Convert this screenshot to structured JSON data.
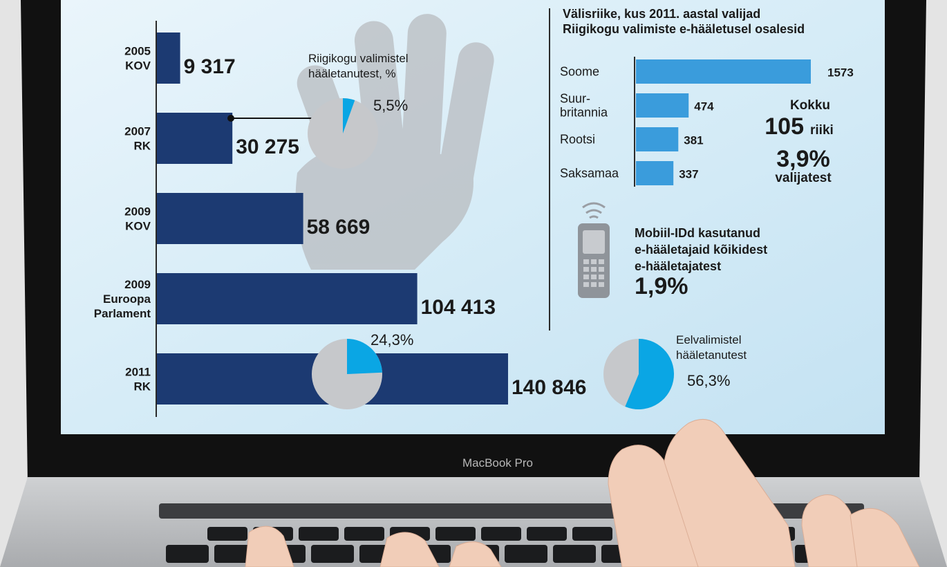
{
  "device": {
    "brand_label": "MacBook Pro"
  },
  "colors": {
    "navy": "#1c3a72",
    "cyan": "#0aa6e4",
    "pie_gray": "#c6c8cb",
    "bar_blue": "#3a9cdc"
  },
  "left_chart": {
    "type": "bar",
    "orientation": "horizontal",
    "categories": [
      "2005\nKOV",
      "2007\nRK",
      "2009\nKOV",
      "2009\nEuroopa\nParlament",
      "2011\nRK"
    ],
    "values": [
      9317,
      30275,
      58669,
      104413,
      140846
    ],
    "value_labels": [
      "9 317",
      "30 275",
      "58 669",
      "104 413",
      "140 846"
    ]
  },
  "pie_title": "Riigikogu valimistel\nhääletanutest, %",
  "pies": [
    {
      "name": "pie-2007",
      "value": 5.5,
      "label": "5,5%"
    },
    {
      "name": "pie-2011",
      "value": 24.3,
      "label": "24,3%"
    },
    {
      "name": "pie-advance",
      "value": 56.3,
      "label": "56,3%",
      "caption": "Eelvalimistel\nhääletanutest"
    }
  ],
  "right_chart": {
    "type": "bar",
    "orientation": "horizontal",
    "title": "Välisriike, kus 2011. aastal valijad\nRiigikogu valimiste e-hääletusel osalesid",
    "categories": [
      "Soome",
      "Suur-\nbritannia",
      "Rootsi",
      "Saksamaa"
    ],
    "values": [
      1573,
      474,
      381,
      337
    ],
    "value_labels": [
      "1573",
      "474",
      "381",
      "337"
    ]
  },
  "summary": {
    "kokku": "Kokku",
    "count": "105",
    "riiki": "riiki",
    "percent": "3,9%",
    "valijatest": "valijatest"
  },
  "mobile": {
    "caption": "Mobiil-IDd kasutanud\ne-hääletajaid kõikidest\ne-hääletajatest",
    "value": "1,9%"
  }
}
